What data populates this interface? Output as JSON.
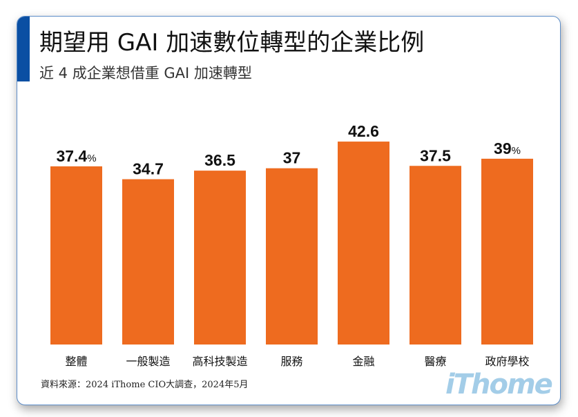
{
  "chart_data": {
    "type": "bar",
    "title": "期望用 GAI 加速數位轉型的企業比例",
    "subtitle": "近 4 成企業想借重 GAI 加速轉型",
    "categories": [
      "整體",
      "一般製造",
      "高科技製造",
      "服務",
      "金融",
      "醫療",
      "政府學校"
    ],
    "values": [
      37.4,
      34.7,
      36.5,
      37,
      42.6,
      37.5,
      39
    ],
    "data_labels": [
      "37.4",
      "34.7",
      "36.5",
      "37",
      "42.6",
      "37.5",
      "39"
    ],
    "unit_suffix": [
      "%",
      "",
      "",
      "",
      "",
      "",
      "%"
    ],
    "ylim": [
      0,
      45
    ],
    "grid": false,
    "bar_color": "#ee6b1f"
  },
  "source": "資料來源：2024 iThome CIO大調查，2024年5月",
  "logo": "iThome",
  "colors": {
    "accent": "#0a4fa3",
    "logo": "#a3cde8"
  }
}
